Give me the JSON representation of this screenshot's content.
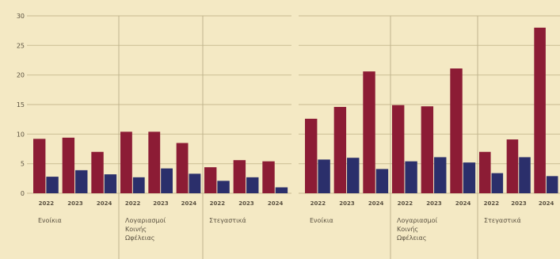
{
  "chart_data": [
    {
      "type": "bar",
      "ylim": [
        0,
        30
      ],
      "yticks": [
        0,
        5,
        10,
        15,
        20,
        25,
        30
      ],
      "grid": true,
      "colors": [
        "#8c1c35",
        "#2b2f6b"
      ],
      "groups": [
        {
          "label": "Ενοίκια",
          "categories": [
            "2022",
            "2023",
            "2024"
          ],
          "series": [
            {
              "values": [
                9.2,
                9.4,
                7.0
              ]
            },
            {
              "values": [
                2.8,
                3.9,
                3.2
              ]
            }
          ]
        },
        {
          "label": "Λογαριασμοί Κοινής Ωφέλειας",
          "categories": [
            "2022",
            "2023",
            "2024"
          ],
          "series": [
            {
              "values": [
                10.4,
                10.4,
                8.5
              ]
            },
            {
              "values": [
                2.7,
                4.2,
                3.3
              ]
            }
          ]
        },
        {
          "label": "Στεγαστικά",
          "categories": [
            "2022",
            "2023",
            "2024"
          ],
          "series": [
            {
              "values": [
                4.4,
                5.6,
                5.4
              ]
            },
            {
              "values": [
                2.1,
                2.7,
                1.0
              ]
            }
          ]
        }
      ]
    },
    {
      "type": "bar",
      "ylim": [
        0,
        30
      ],
      "yticks": [
        0,
        5,
        10,
        15,
        20,
        25,
        30
      ],
      "grid": true,
      "colors": [
        "#8c1c35",
        "#2b2f6b"
      ],
      "groups": [
        {
          "label": "Ενοίκια",
          "categories": [
            "2022",
            "2023",
            "2024"
          ],
          "series": [
            {
              "values": [
                12.6,
                14.6,
                20.6
              ]
            },
            {
              "values": [
                5.7,
                6.0,
                4.1
              ]
            }
          ]
        },
        {
          "label": "Λογαριασμοί Κοινής Ωφέλειας",
          "categories": [
            "2022",
            "2023",
            "2024"
          ],
          "series": [
            {
              "values": [
                14.9,
                14.7,
                21.1
              ]
            },
            {
              "values": [
                5.4,
                6.1,
                5.2
              ]
            }
          ]
        },
        {
          "label": "Στεγαστικά",
          "categories": [
            "2022",
            "2023",
            "2024"
          ],
          "series": [
            {
              "values": [
                7.0,
                9.1,
                28.0
              ]
            },
            {
              "values": [
                3.4,
                6.1,
                2.9
              ]
            }
          ]
        }
      ]
    }
  ]
}
